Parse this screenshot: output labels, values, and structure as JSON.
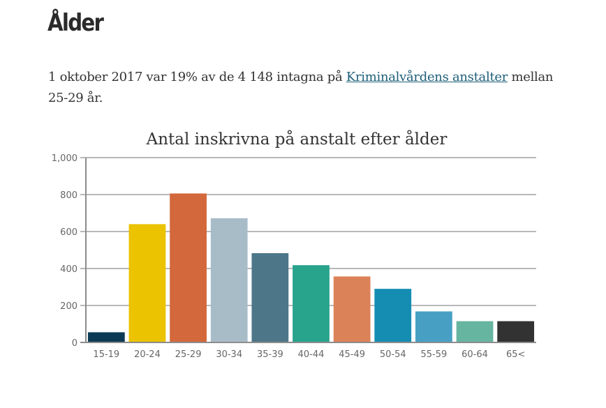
{
  "page": {
    "heading": "Ålder",
    "intro_before": "1 oktober 2017 var 19% av de 4 148 intagna på ",
    "intro_link": "Kriminalvårdens anstalter",
    "intro_after": " mellan 25-29 år."
  },
  "chart_data": {
    "type": "bar",
    "title": "Antal inskrivna på anstalt efter ålder",
    "xlabel": "",
    "ylabel": "",
    "ylim": [
      0,
      1000
    ],
    "yticks": [
      0,
      200,
      400,
      600,
      800,
      1000
    ],
    "ytick_labels": [
      "0",
      "200",
      "400",
      "600",
      "800",
      "1,000"
    ],
    "grid": true,
    "categories": [
      "15-19",
      "20-24",
      "25-29",
      "30-34",
      "35-39",
      "40-44",
      "45-49",
      "50-54",
      "55-59",
      "60-64",
      "65<"
    ],
    "values": [
      55,
      640,
      806,
      672,
      483,
      418,
      357,
      290,
      168,
      115,
      115
    ],
    "colors": [
      "#0c3a55",
      "#ebc300",
      "#d3683c",
      "#a8bcc8",
      "#4d7689",
      "#28a38c",
      "#dc8258",
      "#158db3",
      "#47a0c4",
      "#66b5a0",
      "#323232"
    ]
  }
}
